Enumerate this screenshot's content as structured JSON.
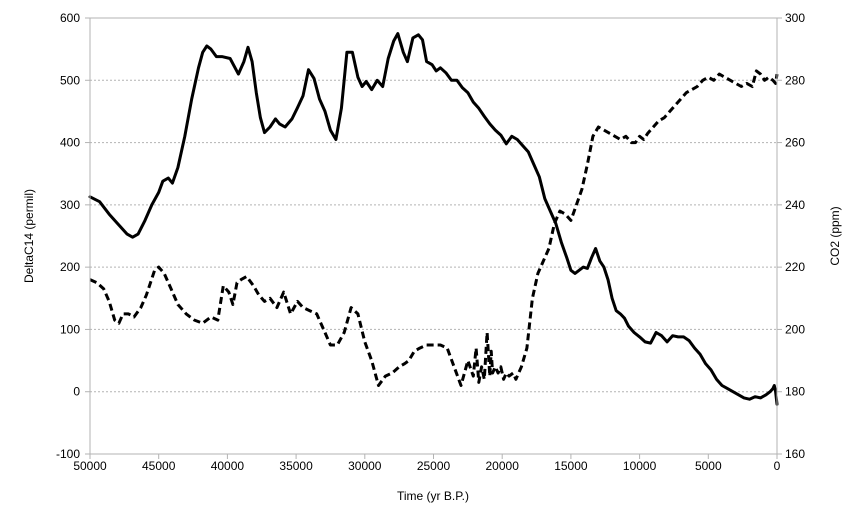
{
  "chart_data": {
    "type": "line",
    "title": "",
    "xlabel": "Time (yr B.P.)",
    "ylabel_left": "DeltaC14 (permil)",
    "ylabel_right": "CO2 (ppm)",
    "xlim": [
      50000,
      0
    ],
    "x_reversed": true,
    "ylim_left": [
      -100,
      600
    ],
    "ylim_right": [
      160,
      300
    ],
    "x_ticks": [
      50000,
      45000,
      40000,
      35000,
      30000,
      25000,
      20000,
      15000,
      10000,
      5000,
      0
    ],
    "x_tick_labels": [
      "50000",
      "45000",
      "40000",
      "35000",
      "30000",
      "25000",
      "20000",
      "15000",
      "10000",
      "5000",
      "0"
    ],
    "y_ticks_left": [
      -100,
      0,
      100,
      200,
      300,
      400,
      500,
      600
    ],
    "y_tick_labels_left": [
      "-100",
      "0",
      "100",
      "200",
      "300",
      "400",
      "500",
      "600"
    ],
    "y_ticks_right": [
      160,
      180,
      200,
      220,
      240,
      260,
      280,
      300
    ],
    "y_tick_labels_right": [
      "160",
      "180",
      "200",
      "220",
      "240",
      "260",
      "280",
      "300"
    ],
    "grid": "horizontal",
    "legend": "none",
    "series": [
      {
        "axis": "left",
        "style": "solid",
        "color": "#000000",
        "x": [
          50000,
          49300,
          48600,
          48000,
          47300,
          46900,
          46500,
          46000,
          45500,
          45000,
          44700,
          44300,
          44000,
          43600,
          43100,
          42600,
          42100,
          41800,
          41500,
          41200,
          40800,
          40400,
          39800,
          39200,
          38800,
          38500,
          38200,
          37900,
          37600,
          37300,
          36900,
          36500,
          36200,
          35800,
          35300,
          34900,
          34500,
          34100,
          33700,
          33300,
          32900,
          32500,
          32100,
          31700,
          31300,
          30900,
          30500,
          30200,
          29900,
          29500,
          29100,
          28700,
          28300,
          27900,
          27600,
          27200,
          26900,
          26500,
          26100,
          25800,
          25500,
          25100,
          24800,
          24500,
          24100,
          23700,
          23300,
          22900,
          22500,
          22100,
          21700,
          21300,
          20900,
          20500,
          20100,
          19700,
          19300,
          18900,
          18500,
          18100,
          17700,
          17300,
          16900,
          16500,
          16100,
          15700,
          15300,
          15000,
          14700,
          14400,
          14100,
          13800,
          13500,
          13200,
          12900,
          12600,
          12300,
          12000,
          11700,
          11400,
          11100,
          10800,
          10400,
          10000,
          9600,
          9200,
          8800,
          8400,
          8000,
          7600,
          7200,
          6800,
          6400,
          6000,
          5600,
          5200,
          4800,
          4400,
          4000,
          3600,
          3200,
          2800,
          2400,
          2000,
          1600,
          1200,
          800,
          500,
          300,
          200,
          100,
          0
        ],
        "y": [
          313,
          305,
          285,
          270,
          253,
          248,
          253,
          275,
          300,
          320,
          338,
          343,
          335,
          360,
          410,
          470,
          520,
          545,
          555,
          550,
          538,
          538,
          535,
          510,
          530,
          553,
          530,
          480,
          440,
          416,
          425,
          438,
          430,
          425,
          438,
          456,
          475,
          517,
          503,
          470,
          450,
          420,
          405,
          455,
          545,
          545,
          505,
          490,
          498,
          485,
          500,
          490,
          535,
          563,
          575,
          545,
          530,
          568,
          573,
          565,
          530,
          525,
          515,
          520,
          512,
          500,
          500,
          488,
          480,
          465,
          455,
          442,
          430,
          420,
          412,
          398,
          410,
          405,
          395,
          385,
          365,
          345,
          310,
          290,
          270,
          240,
          215,
          195,
          190,
          195,
          200,
          198,
          215,
          230,
          210,
          200,
          180,
          150,
          130,
          125,
          118,
          105,
          95,
          88,
          80,
          78,
          95,
          90,
          80,
          90,
          88,
          88,
          82,
          70,
          60,
          45,
          35,
          20,
          10,
          5,
          0,
          -5,
          -10,
          -12,
          -8,
          -10,
          -5,
          0,
          5,
          10,
          0,
          -20
        ]
      },
      {
        "axis": "right",
        "style": "dashed",
        "color": "#000000",
        "x": [
          50000,
          49500,
          49000,
          48600,
          48200,
          47900,
          47600,
          47200,
          46800,
          46300,
          45900,
          45600,
          45300,
          45000,
          44600,
          44100,
          43600,
          43000,
          42400,
          41800,
          41200,
          40700,
          40300,
          39900,
          39600,
          39300,
          39000,
          38600,
          38100,
          37700,
          37300,
          36900,
          36400,
          35900,
          35400,
          34900,
          34500,
          34000,
          33500,
          33000,
          32500,
          32000,
          31500,
          31000,
          30500,
          30000,
          29500,
          29000,
          28500,
          28000,
          27500,
          27100,
          26800,
          26400,
          26000,
          25500,
          25000,
          24500,
          24000,
          23500,
          23000,
          22500,
          22100,
          21900,
          21700,
          21500,
          21300,
          21100,
          20900,
          20800,
          20700,
          20500,
          20300,
          20100,
          19900,
          19700,
          19500,
          19200,
          19000,
          18600,
          18200,
          17800,
          17400,
          17000,
          16600,
          16200,
          15800,
          15400,
          15000,
          14600,
          14200,
          13800,
          13400,
          13000,
          12600,
          12200,
          11800,
          11400,
          11000,
          10600,
          10300,
          10000,
          9700,
          9400,
          9000,
          8600,
          8200,
          7800,
          7400,
          7000,
          6600,
          6200,
          5800,
          5400,
          5000,
          4600,
          4200,
          3800,
          3400,
          3000,
          2600,
          2200,
          1800,
          1500,
          1200,
          900,
          600,
          300,
          100,
          0
        ],
        "y": [
          216,
          215,
          213,
          209,
          203,
          202,
          205,
          205,
          204,
          207,
          211,
          215,
          219,
          220,
          218,
          213,
          208,
          205,
          203,
          202,
          204,
          203,
          214,
          212,
          208,
          215,
          216,
          217,
          214,
          211,
          209,
          210,
          207,
          212,
          205,
          209,
          207,
          206,
          205,
          200,
          195,
          195,
          199,
          207,
          205,
          196,
          190,
          182,
          185,
          186,
          188,
          189,
          190,
          193,
          194,
          195,
          195,
          195,
          194,
          188,
          182,
          190,
          185,
          194,
          183,
          188,
          184,
          199,
          185,
          193,
          186,
          188,
          186,
          188,
          184,
          186,
          185,
          186,
          184,
          188,
          194,
          210,
          218,
          222,
          226,
          234,
          238,
          237,
          235,
          240,
          245,
          253,
          262,
          265,
          264,
          263,
          262,
          261,
          262,
          260,
          260,
          262,
          261,
          263,
          265,
          267,
          268,
          270,
          272,
          274,
          276,
          277,
          278,
          280,
          281,
          280,
          282,
          281,
          280,
          279,
          278,
          279,
          278,
          283,
          282,
          280,
          281,
          280,
          279,
          282
        ]
      }
    ]
  }
}
